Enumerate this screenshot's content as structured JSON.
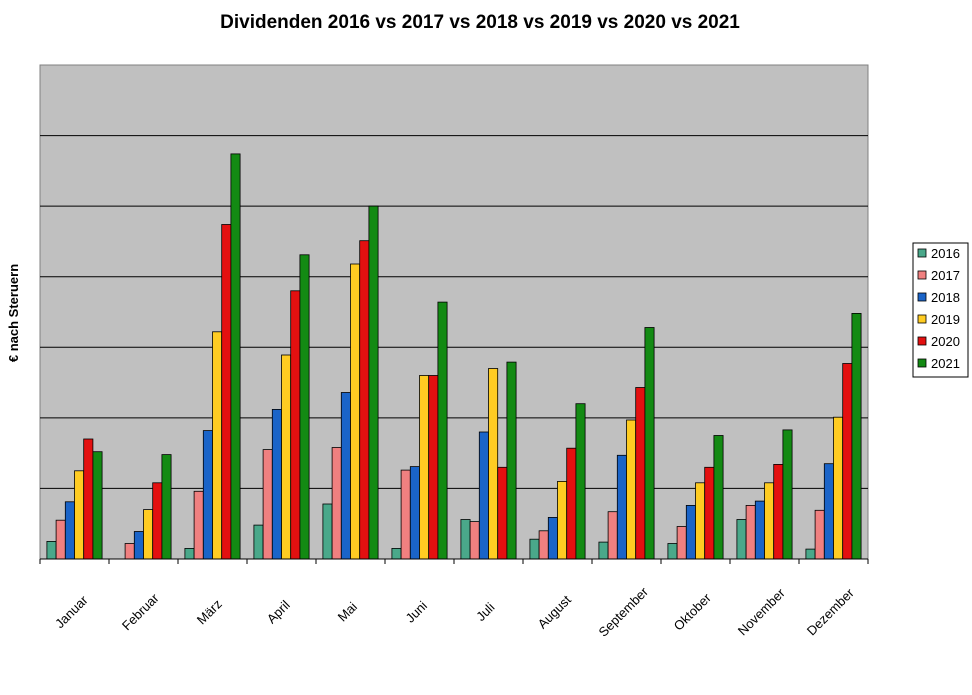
{
  "chart_data": {
    "type": "bar",
    "title": "Dividenden 2016 vs 2017 vs 2018 vs 2019 vs 2020 vs 2021",
    "xlabel": "",
    "ylabel": "€ nach Steruern",
    "ylim": [
      0,
      7
    ],
    "grid": true,
    "legend_position": "right",
    "background_color": "#c0c0c0",
    "categories": [
      "Januar",
      "Februar",
      "März",
      "April",
      "Mai",
      "Juni",
      "Juli",
      "August",
      "September",
      "Oktober",
      "November",
      "Dezember"
    ],
    "series": [
      {
        "name": "2016",
        "color": "#4aa88a",
        "values": [
          0.25,
          0.0,
          0.15,
          0.48,
          0.78,
          0.15,
          0.56,
          0.28,
          0.24,
          0.22,
          0.56,
          0.14
        ]
      },
      {
        "name": "2017",
        "color": "#f08080",
        "values": [
          0.55,
          0.22,
          0.96,
          1.55,
          1.58,
          1.26,
          0.53,
          0.4,
          0.67,
          0.46,
          0.76,
          0.69
        ]
      },
      {
        "name": "2018",
        "color": "#1a64c8",
        "values": [
          0.81,
          0.39,
          1.82,
          2.12,
          2.36,
          1.31,
          1.8,
          0.59,
          1.47,
          0.76,
          0.82,
          1.35
        ]
      },
      {
        "name": "2019",
        "color": "#ffcc22",
        "values": [
          1.25,
          0.7,
          3.22,
          2.89,
          4.18,
          2.6,
          2.7,
          1.1,
          1.97,
          1.08,
          1.08,
          2.01
        ]
      },
      {
        "name": "2020",
        "color": "#e31010",
        "values": [
          1.7,
          1.08,
          4.74,
          3.8,
          4.51,
          2.6,
          1.3,
          1.57,
          2.43,
          1.3,
          1.34,
          2.77
        ]
      },
      {
        "name": "2021",
        "color": "#138a13",
        "values": [
          1.52,
          1.48,
          5.74,
          4.31,
          5.0,
          3.64,
          2.79,
          2.2,
          3.28,
          1.75,
          1.83,
          3.48
        ]
      }
    ]
  }
}
